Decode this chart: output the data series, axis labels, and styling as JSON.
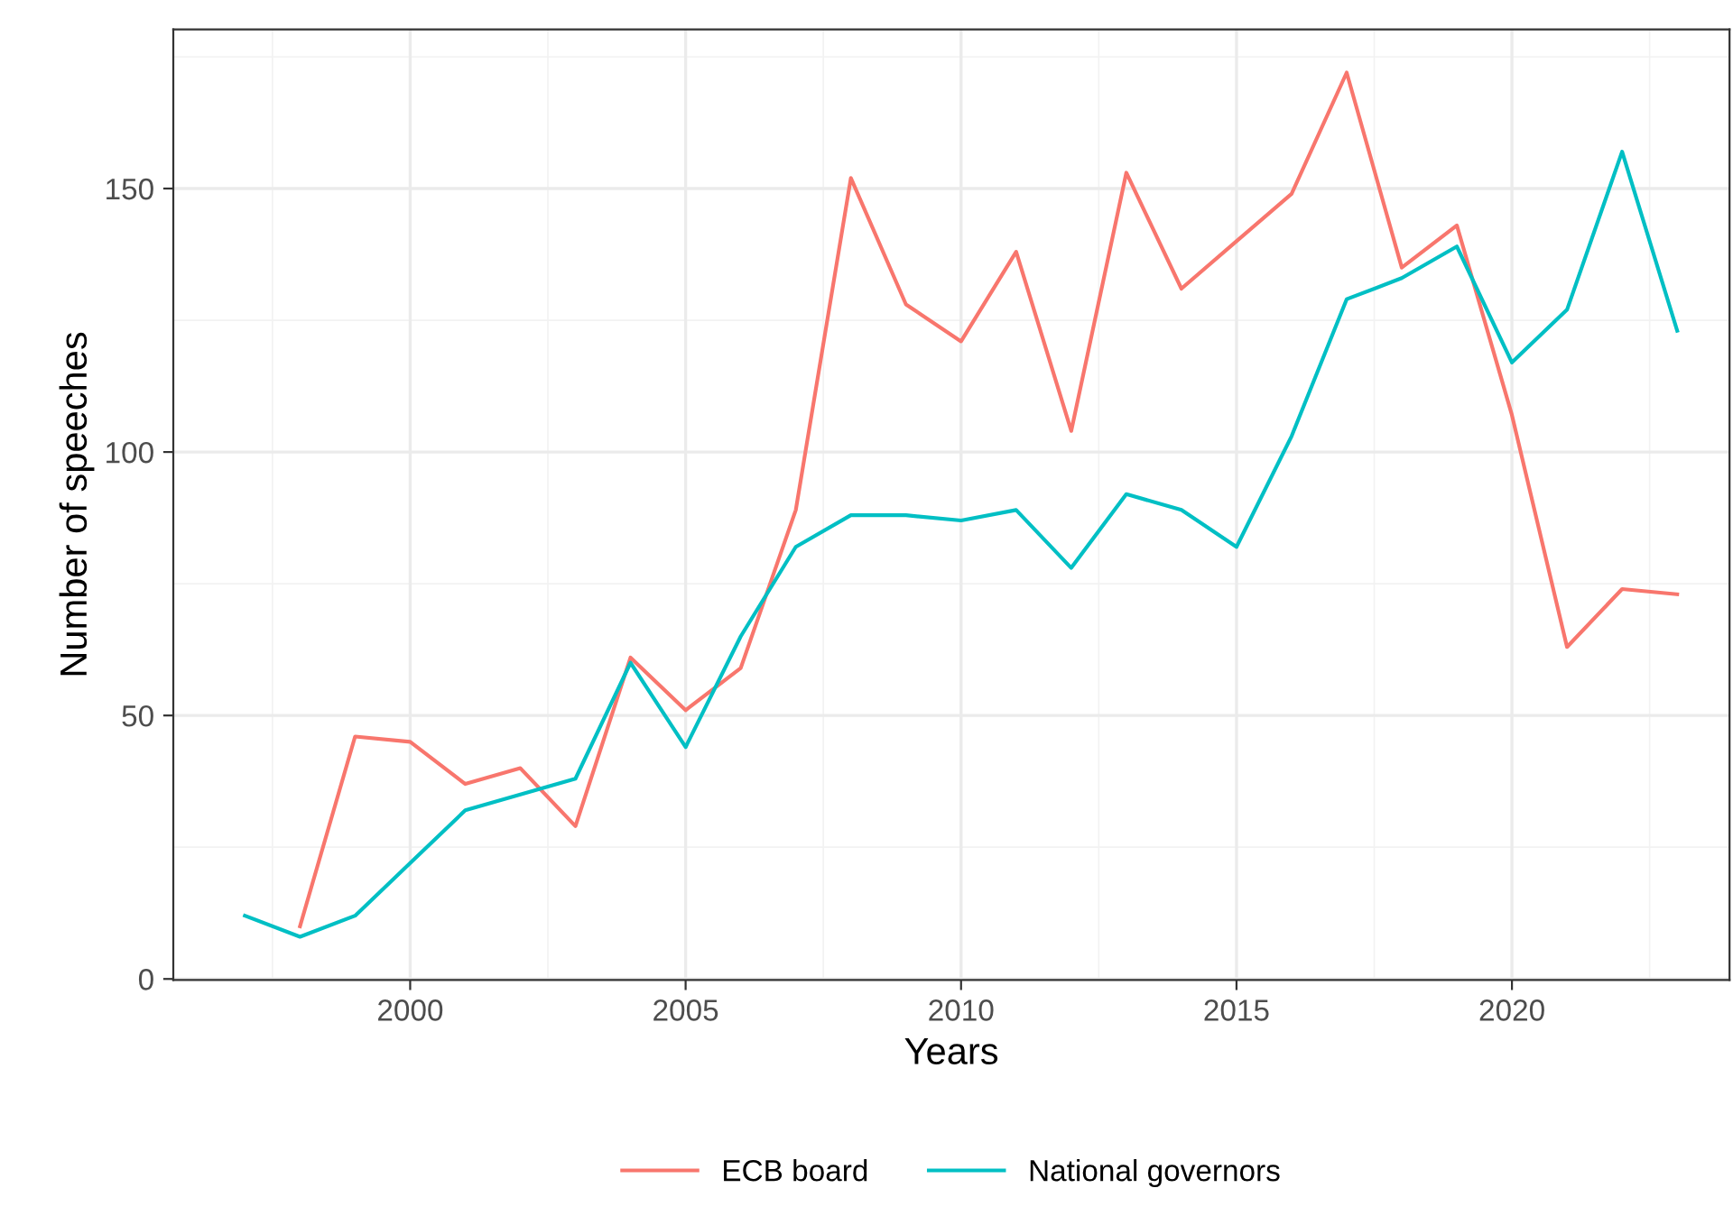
{
  "chart_data": {
    "type": "line",
    "xlabel": "Years",
    "ylabel": "Number of speeches",
    "xlim": [
      1995.7,
      2023.95
    ],
    "ylim": [
      -0.2,
      180.2
    ],
    "xticks": [
      2000,
      2005,
      2010,
      2015,
      2020
    ],
    "yticks": [
      0,
      50,
      100,
      150
    ],
    "grid": true,
    "legend": "bottom",
    "line_style": "solid",
    "marker": "none",
    "series": [
      {
        "name": "ECB board",
        "color": "#f8766d",
        "x": [
          1998,
          1999,
          2000,
          2001,
          2002,
          2003,
          2004,
          2005,
          2006,
          2007,
          2008,
          2009,
          2010,
          2011,
          2012,
          2013,
          2014,
          2015,
          2016,
          2017,
          2018,
          2019,
          2020,
          2021,
          2022,
          2023
        ],
        "values": [
          10,
          46,
          45,
          37,
          40,
          29,
          61,
          51,
          59,
          89,
          152,
          128,
          121,
          138,
          104,
          153,
          131,
          140,
          149,
          172,
          135,
          143,
          107,
          63,
          74,
          73
        ]
      },
      {
        "name": "National governors",
        "color": "#00bfc4",
        "x": [
          1997,
          1998,
          1999,
          2000,
          2001,
          2002,
          2003,
          2004,
          2005,
          2006,
          2007,
          2008,
          2009,
          2010,
          2011,
          2012,
          2013,
          2014,
          2015,
          2016,
          2017,
          2018,
          2019,
          2020,
          2021,
          2022,
          2023
        ],
        "values": [
          12,
          8,
          12,
          22,
          32,
          35,
          38,
          60,
          44,
          65,
          82,
          88,
          88,
          87,
          89,
          78,
          92,
          89,
          82,
          103,
          129,
          133,
          139,
          117,
          127,
          157,
          123
        ]
      }
    ]
  }
}
